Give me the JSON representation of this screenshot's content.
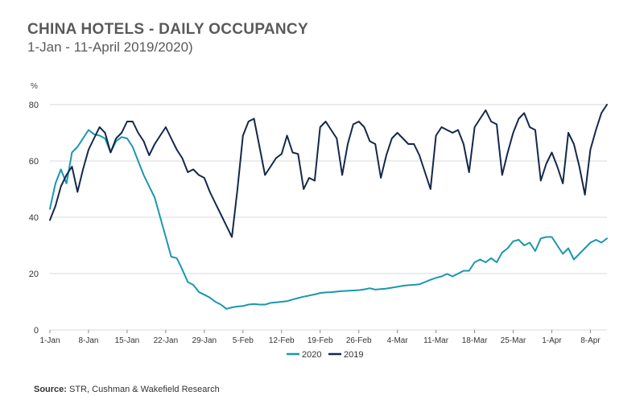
{
  "header": {
    "title": "CHINA HOTELS - DAILY OCCUPANCY",
    "subtitle": "1-Jan - 11-April 2019/2020)"
  },
  "footer": {
    "source_label": "Source:",
    "source_text": " STR, Cushman & Wakefield Research"
  },
  "chart_data": {
    "type": "line",
    "title": "CHINA HOTELS - DAILY OCCUPANCY",
    "subtitle": "1-Jan - 11-April 2019/2020)",
    "ylabel": "%",
    "xlabel": "",
    "ylim": [
      0,
      80
    ],
    "yticks": [
      0,
      20,
      40,
      60,
      80
    ],
    "xlim": [
      0,
      101
    ],
    "xticks": [
      {
        "pos": 0,
        "label": "1-Jan"
      },
      {
        "pos": 7,
        "label": "8-Jan"
      },
      {
        "pos": 14,
        "label": "15-Jan"
      },
      {
        "pos": 21,
        "label": "22-Jan"
      },
      {
        "pos": 28,
        "label": "29-Jan"
      },
      {
        "pos": 35,
        "label": "5-Feb"
      },
      {
        "pos": 42,
        "label": "12-Feb"
      },
      {
        "pos": 49,
        "label": "19-Feb"
      },
      {
        "pos": 56,
        "label": "26-Feb"
      },
      {
        "pos": 63,
        "label": "4-Mar"
      },
      {
        "pos": 70,
        "label": "11-Mar"
      },
      {
        "pos": 77,
        "label": "18-Mar"
      },
      {
        "pos": 84,
        "label": "25-Mar"
      },
      {
        "pos": 91,
        "label": "1-Apr"
      },
      {
        "pos": 98,
        "label": "8-Apr"
      }
    ],
    "grid": "horizontal",
    "legend": "bottom-center",
    "series": [
      {
        "name": "2020",
        "color": "#1a97b0",
        "values": [
          43,
          52,
          57,
          52,
          63,
          65,
          68,
          71,
          69.5,
          69,
          68,
          63,
          67,
          68.5,
          68,
          65,
          60,
          55,
          51,
          47,
          40,
          33,
          26,
          25.5,
          21.5,
          17,
          16,
          13.5,
          12.5,
          11.5,
          10,
          9,
          7.5,
          8,
          8.3,
          8.5,
          9,
          9.2,
          9,
          9,
          9.6,
          9.8,
          10,
          10.2,
          10.8,
          11.3,
          11.8,
          12.2,
          12.6,
          13.1,
          13.3,
          13.4,
          13.6,
          13.8,
          13.9,
          14,
          14.1,
          14.4,
          14.8,
          14.3,
          14.5,
          14.7,
          15,
          15.3,
          15.7,
          15.9,
          16,
          16.2,
          17,
          17.8,
          18.5,
          19,
          19.9,
          19,
          20,
          21,
          21,
          24,
          25,
          24,
          25.5,
          24,
          27.5,
          29,
          31.5,
          32,
          30,
          31,
          28,
          32.5,
          33,
          33,
          30,
          27,
          29,
          25,
          27,
          29,
          31,
          32,
          31,
          32.5
        ]
      },
      {
        "name": "2019",
        "color": "#14284b",
        "values": [
          39,
          44,
          51,
          55,
          58,
          49,
          57,
          64,
          68,
          72,
          70,
          63,
          68,
          70,
          74,
          74,
          70,
          67,
          62,
          66,
          69,
          72,
          68,
          64,
          61,
          56,
          57,
          55,
          54,
          49,
          45,
          41,
          37,
          33,
          50,
          69,
          74,
          75,
          65,
          55,
          58,
          61,
          62.5,
          69,
          63,
          62.5,
          50,
          54,
          53,
          72,
          74,
          71,
          68,
          55,
          66,
          73,
          74,
          72,
          67,
          66,
          54,
          62,
          68,
          70,
          68,
          66,
          66,
          62,
          56,
          50,
          69,
          72,
          71,
          70,
          71,
          66,
          56,
          72,
          75,
          78,
          74,
          73,
          55,
          63,
          70,
          75,
          77,
          72,
          71,
          53,
          59,
          63,
          58,
          52,
          70,
          66,
          58,
          48,
          64,
          71,
          77,
          80
        ]
      }
    ]
  }
}
